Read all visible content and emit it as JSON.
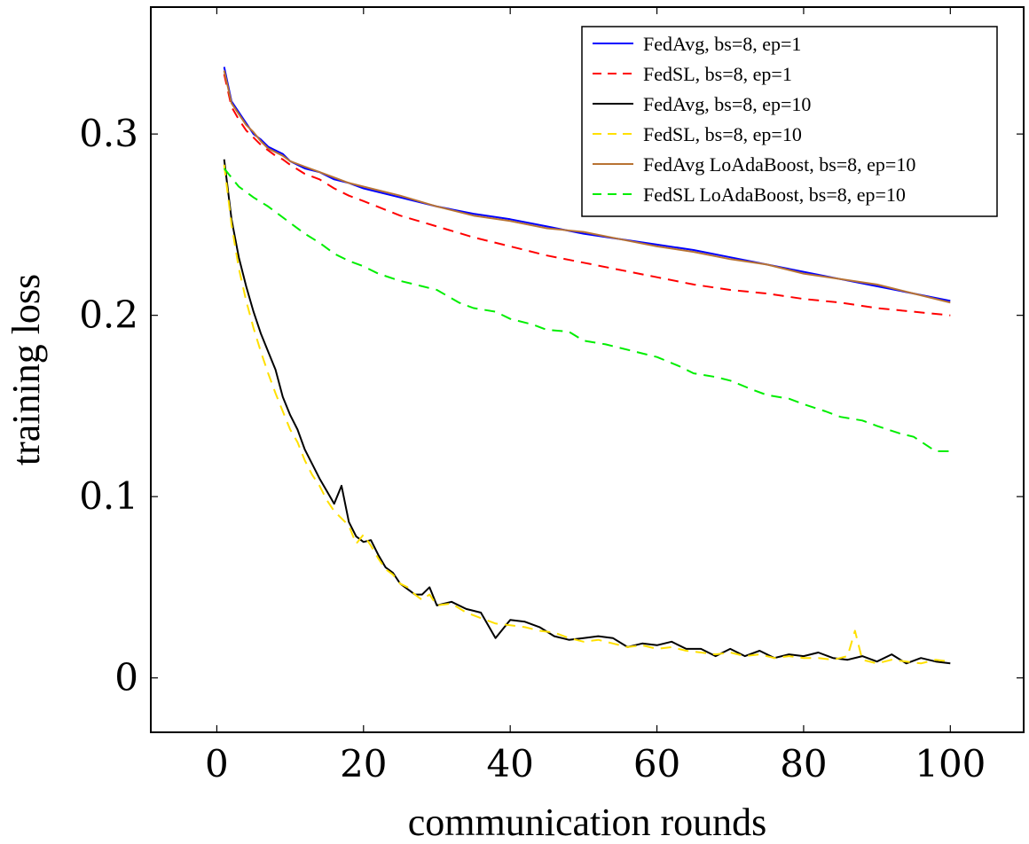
{
  "chart_data": {
    "type": "line",
    "title": "",
    "xlabel": "communication rounds",
    "ylabel": "training loss",
    "xlim": [
      -9,
      110
    ],
    "ylim": [
      -0.03,
      0.37
    ],
    "xticks": [
      0,
      20,
      40,
      60,
      80,
      100
    ],
    "xtick_labels": [
      "0",
      "20",
      "40",
      "60",
      "80",
      "100"
    ],
    "yticks": [
      0,
      0.1,
      0.2,
      0.3
    ],
    "ytick_labels": [
      "0",
      "0.1",
      "0.2",
      "0.3"
    ],
    "grid": false,
    "legend_position": "top-right",
    "series": [
      {
        "name": "FedAvg, bs=8, ep=1",
        "color": "#0000ff",
        "dash": "solid",
        "x": [
          1,
          2,
          3,
          4,
          5,
          6,
          7,
          8,
          9,
          10,
          12,
          14,
          16,
          18,
          20,
          25,
          30,
          35,
          40,
          45,
          50,
          55,
          60,
          65,
          70,
          75,
          80,
          85,
          90,
          95,
          100
        ],
        "y": [
          0.337,
          0.318,
          0.312,
          0.306,
          0.3,
          0.297,
          0.293,
          0.291,
          0.289,
          0.285,
          0.281,
          0.279,
          0.275,
          0.273,
          0.27,
          0.265,
          0.26,
          0.256,
          0.253,
          0.249,
          0.245,
          0.242,
          0.239,
          0.236,
          0.232,
          0.228,
          0.224,
          0.22,
          0.216,
          0.212,
          0.208
        ]
      },
      {
        "name": "FedSL, bs=8, ep=1",
        "color": "#ff0000",
        "dash": "dashed",
        "x": [
          1,
          2,
          3,
          4,
          5,
          6,
          7,
          8,
          9,
          10,
          12,
          14,
          16,
          18,
          20,
          25,
          30,
          35,
          40,
          45,
          50,
          55,
          60,
          65,
          70,
          75,
          80,
          85,
          90,
          95,
          100
        ],
        "y": [
          0.333,
          0.315,
          0.308,
          0.302,
          0.298,
          0.294,
          0.291,
          0.288,
          0.286,
          0.283,
          0.278,
          0.275,
          0.27,
          0.266,
          0.263,
          0.255,
          0.249,
          0.243,
          0.238,
          0.233,
          0.229,
          0.225,
          0.221,
          0.217,
          0.214,
          0.212,
          0.209,
          0.207,
          0.204,
          0.202,
          0.2
        ]
      },
      {
        "name": "FedAvg, bs=8, ep=10",
        "color": "#000000",
        "dash": "solid",
        "x": [
          1,
          2,
          3,
          4,
          5,
          6,
          7,
          8,
          9,
          10,
          11,
          12,
          13,
          14,
          15,
          16,
          17,
          18,
          19,
          20,
          21,
          22,
          23,
          24,
          25,
          26,
          27,
          28,
          29,
          30,
          32,
          34,
          36,
          38,
          40,
          42,
          44,
          46,
          48,
          50,
          52,
          54,
          56,
          58,
          60,
          62,
          64,
          66,
          68,
          70,
          72,
          74,
          76,
          78,
          80,
          82,
          84,
          86,
          88,
          90,
          92,
          94,
          96,
          98,
          100
        ],
        "y": [
          0.286,
          0.253,
          0.232,
          0.216,
          0.202,
          0.19,
          0.18,
          0.17,
          0.155,
          0.145,
          0.137,
          0.126,
          0.118,
          0.11,
          0.103,
          0.096,
          0.106,
          0.086,
          0.078,
          0.075,
          0.076,
          0.068,
          0.061,
          0.058,
          0.052,
          0.049,
          0.046,
          0.046,
          0.05,
          0.04,
          0.042,
          0.038,
          0.036,
          0.022,
          0.032,
          0.031,
          0.028,
          0.023,
          0.021,
          0.022,
          0.023,
          0.022,
          0.017,
          0.019,
          0.018,
          0.02,
          0.016,
          0.016,
          0.012,
          0.016,
          0.012,
          0.015,
          0.011,
          0.013,
          0.012,
          0.014,
          0.011,
          0.01,
          0.012,
          0.009,
          0.013,
          0.008,
          0.011,
          0.009,
          0.008
        ]
      },
      {
        "name": "FedSL, bs=8, ep=10",
        "color": "#ffe000",
        "dash": "dashed",
        "x": [
          1,
          2,
          3,
          4,
          5,
          6,
          7,
          8,
          9,
          10,
          11,
          12,
          13,
          14,
          15,
          16,
          17,
          18,
          19,
          20,
          21,
          22,
          23,
          24,
          25,
          26,
          27,
          28,
          29,
          30,
          32,
          34,
          36,
          38,
          40,
          42,
          44,
          46,
          48,
          50,
          52,
          54,
          56,
          58,
          60,
          62,
          64,
          66,
          68,
          70,
          72,
          74,
          76,
          78,
          80,
          82,
          84,
          86,
          87,
          88,
          90,
          92,
          94,
          96,
          98,
          100
        ],
        "y": [
          0.283,
          0.25,
          0.226,
          0.208,
          0.193,
          0.18,
          0.168,
          0.157,
          0.147,
          0.137,
          0.13,
          0.12,
          0.112,
          0.106,
          0.098,
          0.092,
          0.088,
          0.084,
          0.074,
          0.079,
          0.073,
          0.066,
          0.06,
          0.057,
          0.052,
          0.05,
          0.046,
          0.043,
          0.046,
          0.04,
          0.041,
          0.036,
          0.033,
          0.03,
          0.029,
          0.028,
          0.026,
          0.025,
          0.022,
          0.02,
          0.021,
          0.019,
          0.017,
          0.018,
          0.016,
          0.017,
          0.015,
          0.014,
          0.013,
          0.014,
          0.012,
          0.013,
          0.011,
          0.012,
          0.011,
          0.011,
          0.01,
          0.012,
          0.026,
          0.01,
          0.008,
          0.01,
          0.009,
          0.008,
          0.01,
          0.009
        ]
      },
      {
        "name": "FedAvg LoAdaBoost, bs=8, ep=10",
        "color": "#b87333",
        "dash": "solid",
        "x": [
          1,
          2,
          3,
          4,
          5,
          6,
          7,
          8,
          9,
          10,
          12,
          14,
          16,
          18,
          20,
          25,
          30,
          35,
          40,
          45,
          50,
          55,
          60,
          65,
          70,
          75,
          80,
          85,
          90,
          95,
          100
        ],
        "y": [
          0.335,
          0.317,
          0.311,
          0.305,
          0.301,
          0.296,
          0.292,
          0.29,
          0.288,
          0.285,
          0.282,
          0.279,
          0.276,
          0.273,
          0.271,
          0.266,
          0.26,
          0.255,
          0.252,
          0.248,
          0.246,
          0.242,
          0.238,
          0.235,
          0.231,
          0.228,
          0.223,
          0.22,
          0.217,
          0.212,
          0.207
        ]
      },
      {
        "name": "FedSL LoAdaBoost, bs=8, ep=10",
        "color": "#00ee00",
        "dash": "dashed",
        "x": [
          1,
          3,
          5,
          7,
          10,
          12,
          14,
          16,
          18,
          20,
          22,
          25,
          28,
          30,
          33,
          35,
          38,
          40,
          43,
          45,
          48,
          50,
          53,
          55,
          58,
          60,
          63,
          65,
          68,
          70,
          73,
          75,
          78,
          80,
          83,
          85,
          88,
          90,
          93,
          95,
          98,
          100
        ],
        "y": [
          0.281,
          0.271,
          0.265,
          0.26,
          0.251,
          0.245,
          0.24,
          0.234,
          0.23,
          0.227,
          0.223,
          0.219,
          0.216,
          0.214,
          0.207,
          0.204,
          0.202,
          0.198,
          0.195,
          0.192,
          0.191,
          0.186,
          0.184,
          0.182,
          0.179,
          0.177,
          0.172,
          0.168,
          0.166,
          0.164,
          0.159,
          0.156,
          0.154,
          0.151,
          0.147,
          0.144,
          0.142,
          0.139,
          0.135,
          0.133,
          0.125,
          0.125
        ]
      }
    ]
  }
}
